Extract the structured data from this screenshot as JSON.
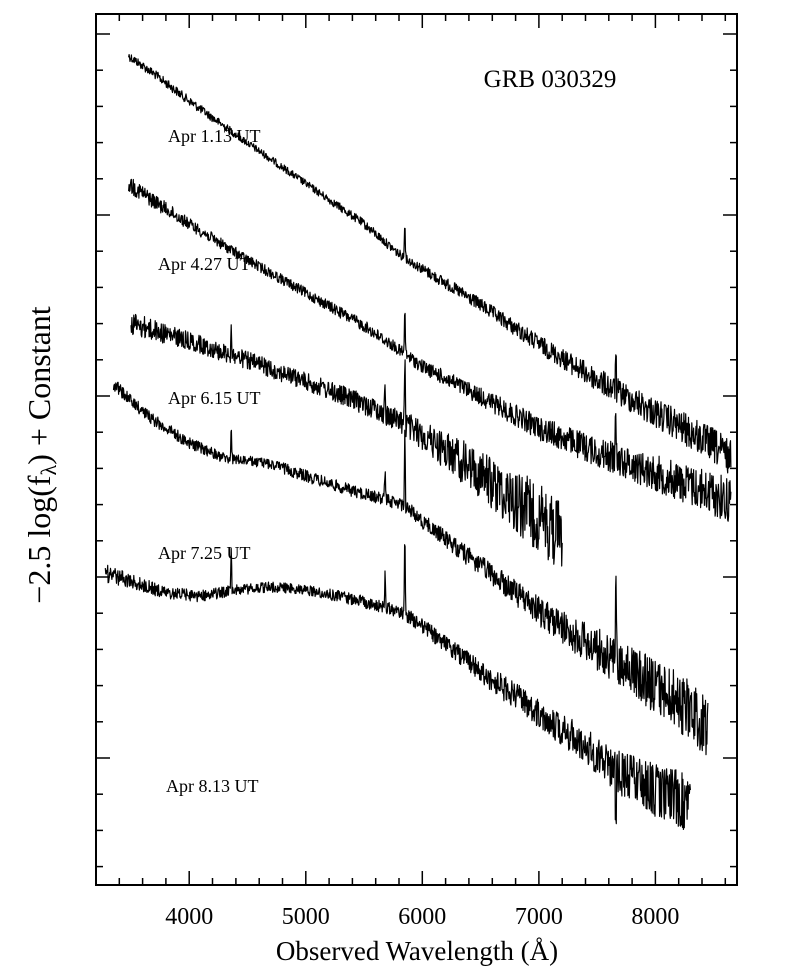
{
  "chart_data": {
    "type": "line",
    "title": "GRB 030329",
    "xlabel": "Observed Wavelength (Å)",
    "ylabel": "−2.5 log(f",
    "ylabel_sub": "λ",
    "ylabel_suffix": ") + Constant",
    "xlim": [
      3200,
      8700
    ],
    "x_ticks": [
      4000,
      5000,
      6000,
      7000,
      8000
    ],
    "y_axis": "magnitude offset (arbitrary, increasing downward)",
    "grid": false,
    "line_color": "#000000",
    "series": [
      {
        "name": "Apr 1.13 UT",
        "x": [
          3480,
          3700,
          4000,
          4500,
          5000,
          5500,
          5800,
          6000,
          6500,
          7000,
          7500,
          8000,
          8500,
          8650
        ],
        "y": [
          0.0,
          0.12,
          0.3,
          0.58,
          0.85,
          1.12,
          1.32,
          1.42,
          1.66,
          1.92,
          2.16,
          2.38,
          2.6,
          2.68
        ],
        "noise": [
          0.03,
          0.03,
          0.03,
          0.025,
          0.025,
          0.03,
          0.03,
          0.035,
          0.045,
          0.06,
          0.08,
          0.1,
          0.12,
          0.12
        ],
        "lines": [
          {
            "x": 5850,
            "dy": -0.3
          },
          {
            "x": 7660,
            "dy": -0.3
          }
        ]
      },
      {
        "name": "Apr 4.27 UT",
        "x": [
          3480,
          3700,
          4000,
          4500,
          5000,
          5500,
          5800,
          6000,
          6500,
          7000,
          7500,
          8000,
          8500,
          8650
        ],
        "y": [
          0.85,
          0.97,
          1.12,
          1.36,
          1.58,
          1.8,
          1.96,
          2.07,
          2.27,
          2.48,
          2.64,
          2.78,
          2.92,
          2.96
        ],
        "noise": [
          0.06,
          0.05,
          0.04,
          0.035,
          0.035,
          0.04,
          0.04,
          0.045,
          0.06,
          0.08,
          0.1,
          0.12,
          0.15,
          0.16
        ],
        "lines": [
          {
            "x": 5850,
            "dy": -0.35
          },
          {
            "x": 7660,
            "dy": -0.4
          }
        ]
      },
      {
        "name": "Apr 6.15 UT",
        "x": [
          3500,
          3700,
          4000,
          4500,
          5000,
          5500,
          5800,
          6000,
          6300,
          6600,
          6900,
          7200
        ],
        "y": [
          1.78,
          1.83,
          1.9,
          2.03,
          2.17,
          2.32,
          2.43,
          2.53,
          2.68,
          2.85,
          3.02,
          3.2
        ],
        "noise": [
          0.08,
          0.07,
          0.06,
          0.06,
          0.06,
          0.07,
          0.08,
          0.1,
          0.14,
          0.18,
          0.22,
          0.24
        ],
        "lines": [
          {
            "x": 4360,
            "dy": -0.2
          },
          {
            "x": 5680,
            "dy": -0.2
          },
          {
            "x": 5850,
            "dy": -0.5
          }
        ]
      },
      {
        "name": "Apr 7.25 UT",
        "x": [
          3350,
          3500,
          3700,
          4000,
          4300,
          4700,
          5000,
          5400,
          5700,
          5850,
          6000,
          6300,
          6700,
          7000,
          7300,
          7600,
          7900,
          8200,
          8450
        ],
        "y": [
          2.18,
          2.3,
          2.43,
          2.58,
          2.68,
          2.72,
          2.8,
          2.9,
          2.96,
          3.0,
          3.1,
          3.28,
          3.52,
          3.7,
          3.86,
          4.0,
          4.16,
          4.3,
          4.48
        ],
        "noise": [
          0.05,
          0.04,
          0.04,
          0.04,
          0.035,
          0.035,
          0.04,
          0.04,
          0.04,
          0.045,
          0.05,
          0.06,
          0.08,
          0.1,
          0.12,
          0.15,
          0.18,
          0.2,
          0.2
        ],
        "lines": [
          {
            "x": 4360,
            "dy": -0.22
          },
          {
            "x": 5680,
            "dy": -0.22
          },
          {
            "x": 5850,
            "dy": -0.55
          },
          {
            "x": 7660,
            "dy": -0.65
          }
        ]
      },
      {
        "name": "Apr 8.13 UT",
        "x": [
          3280,
          3500,
          3800,
          4100,
          4400,
          4700,
          5000,
          5400,
          5700,
          5850,
          6000,
          6300,
          6600,
          7000,
          7400,
          7700,
          8000,
          8300
        ],
        "y": [
          3.45,
          3.5,
          3.58,
          3.6,
          3.56,
          3.54,
          3.56,
          3.62,
          3.68,
          3.72,
          3.8,
          3.98,
          4.16,
          4.38,
          4.6,
          4.78,
          4.9,
          4.98
        ],
        "noise": [
          0.06,
          0.05,
          0.04,
          0.04,
          0.035,
          0.035,
          0.035,
          0.04,
          0.04,
          0.045,
          0.05,
          0.06,
          0.08,
          0.1,
          0.12,
          0.15,
          0.18,
          0.2
        ],
        "lines": [
          {
            "x": 4360,
            "dy": -0.3
          },
          {
            "x": 5680,
            "dy": -0.25
          },
          {
            "x": 5850,
            "dy": -0.6
          },
          {
            "x": 7660,
            "dy": 0.45
          }
        ]
      }
    ]
  }
}
